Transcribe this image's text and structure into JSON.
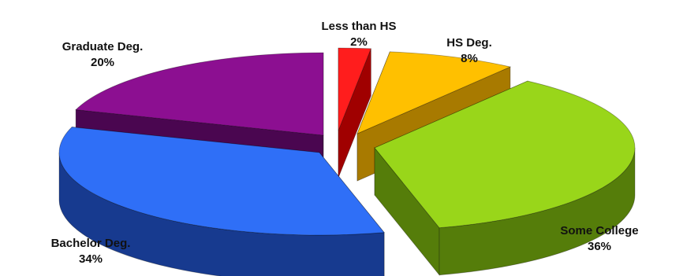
{
  "chart_data": {
    "type": "pie",
    "title": "",
    "three_d": true,
    "exploded": true,
    "legend": "none",
    "categories": [
      "Less than HS",
      "HS Deg.",
      "Some College",
      "Bachelor Deg.",
      "Graduate Deg."
    ],
    "values": [
      2,
      8,
      36,
      34,
      20
    ],
    "value_labels": [
      "2%",
      "8%",
      "36%",
      "34%",
      "20%"
    ],
    "colors": [
      "#ff1d1d",
      "#ffc000",
      "#99d61a",
      "#2f6ff7",
      "#8c0f91"
    ],
    "dark_colors": [
      "#a00000",
      "#a87a00",
      "#557d0a",
      "#173a8f",
      "#4a0650"
    ]
  }
}
